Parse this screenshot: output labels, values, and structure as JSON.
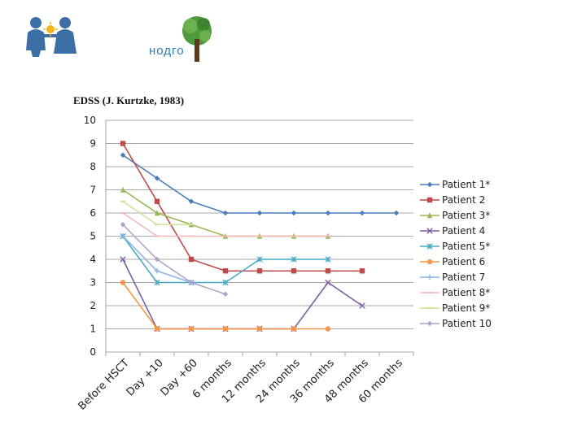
{
  "logo": {
    "text": "нодго"
  },
  "chart_data": {
    "type": "line",
    "title": "EDSS (J. Kurtzke, 1983)",
    "xlabel": "",
    "ylabel": "",
    "ylim": [
      0,
      10
    ],
    "yticks": [
      0,
      1,
      2,
      3,
      4,
      5,
      6,
      7,
      8,
      9,
      10
    ],
    "grid": true,
    "legend": "right",
    "categories": [
      "Before HSCT",
      "Day +10",
      "Day +60",
      "6 months",
      "12 months",
      "24 months",
      "36 months",
      "48 months",
      "60 months"
    ],
    "series": [
      {
        "name": "Patient 1*",
        "color": "#4a7ebb",
        "marker": "diamond",
        "values": [
          8.5,
          7.5,
          6.5,
          6,
          6,
          6,
          6,
          6,
          6
        ]
      },
      {
        "name": "Patient 2",
        "color": "#be4b48",
        "marker": "square",
        "values": [
          9,
          6.5,
          4,
          3.5,
          3.5,
          3.5,
          3.5,
          3.5,
          null
        ]
      },
      {
        "name": "Patient 3*",
        "color": "#98b954",
        "marker": "triangle",
        "values": [
          7,
          6,
          5.5,
          5,
          5,
          5,
          5,
          null,
          null
        ]
      },
      {
        "name": "Patient 4",
        "color": "#7d60a0",
        "marker": "x",
        "values": [
          4,
          1,
          1,
          1,
          1,
          1,
          3,
          2,
          null
        ]
      },
      {
        "name": "Patient 5*",
        "color": "#46aac5",
        "marker": "star",
        "values": [
          5,
          3,
          3,
          3,
          4,
          4,
          4,
          null,
          null
        ]
      },
      {
        "name": "Patient 6",
        "color": "#f79646",
        "marker": "circle",
        "values": [
          3,
          1,
          1,
          1,
          1,
          1,
          1,
          null,
          null
        ]
      },
      {
        "name": "Patient 7",
        "color": "#8eb4e3",
        "marker": "plus",
        "values": [
          5,
          3.5,
          3,
          null,
          null,
          null,
          null,
          null,
          null
        ]
      },
      {
        "name": "Patient 8*",
        "color": "#f2b9b7",
        "marker": "dash",
        "values": [
          6,
          5,
          5,
          5,
          5,
          5,
          5,
          null,
          null
        ]
      },
      {
        "name": "Patient 9*",
        "color": "#cfe19e",
        "marker": "dash",
        "values": [
          6.5,
          5.5,
          5.5,
          null,
          null,
          null,
          null,
          null,
          null
        ]
      },
      {
        "name": "Patient 10",
        "color": "#b3a2c7",
        "marker": "diamond",
        "values": [
          5.5,
          4,
          3,
          2.5,
          null,
          null,
          null,
          null,
          null
        ]
      }
    ]
  }
}
